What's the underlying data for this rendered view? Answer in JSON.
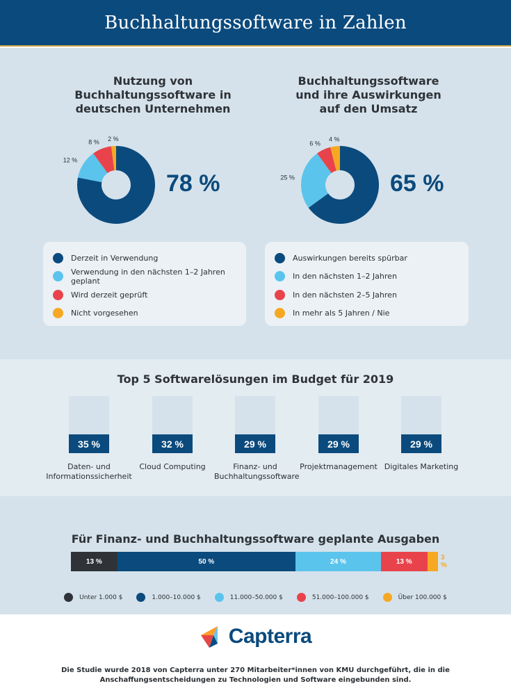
{
  "header": {
    "title": "Buchhaltungssoftware in Zahlen"
  },
  "colors": {
    "navy": "#0b4a7d",
    "light_blue": "#5bc4ec",
    "red": "#e8434b",
    "orange": "#f7a823",
    "dark": "#2f3338"
  },
  "usage": {
    "title": "Nutzung von Buchhaltungssoftware in deutschen Unternehmen",
    "big_value": "78 %",
    "slices": [
      {
        "label": "Derzeit in Verwendung",
        "value": 78,
        "value_label": "",
        "color": "#0b4a7d"
      },
      {
        "label": "Verwendung in den nächsten 1–2 Jahren geplant",
        "value": 12,
        "value_label": "12 %",
        "color": "#5bc4ec"
      },
      {
        "label": "Wird derzeit geprüft",
        "value": 8,
        "value_label": "8 %",
        "color": "#e8434b"
      },
      {
        "label": "Nicht vorgesehen",
        "value": 2,
        "value_label": "2 %",
        "color": "#f7a823"
      }
    ]
  },
  "impact": {
    "title": "Buchhaltungssoftware und ihre Auswirkungen auf den Umsatz",
    "big_value": "65 %",
    "slices": [
      {
        "label": "Auswirkungen bereits spürbar",
        "value": 65,
        "value_label": "",
        "color": "#0b4a7d"
      },
      {
        "label": "In den nächsten 1–2 Jahren",
        "value": 25,
        "value_label": "25 %",
        "color": "#5bc4ec"
      },
      {
        "label": "In den nächsten 2–5 Jahren",
        "value": 6,
        "value_label": "6 %",
        "color": "#e8434b"
      },
      {
        "label": "In mehr als 5 Jahren / Nie",
        "value": 4,
        "value_label": "4 %",
        "color": "#f7a823"
      }
    ]
  },
  "budget": {
    "title": "Top 5 Softwarelösungen im Budget für 2019",
    "items": [
      {
        "value": "35 %",
        "label": "Daten- und Informationssicherheit"
      },
      {
        "value": "32 %",
        "label": "Cloud Computing"
      },
      {
        "value": "29 %",
        "label": "Finanz- und Buchhaltungssoftware"
      },
      {
        "value": "29 %",
        "label": "Projektmanagement"
      },
      {
        "value": "29 %",
        "label": "Digitales Marketing"
      }
    ]
  },
  "spending": {
    "title": "Für Finanz- und Buchhaltungssoftware geplante Ausgaben",
    "segments": [
      {
        "label": "Unter 1.000 $",
        "value": 13,
        "value_label": "13 %",
        "color": "#2f3338"
      },
      {
        "label": "1.000–10.000 $",
        "value": 50,
        "value_label": "50 %",
        "color": "#0b4a7d"
      },
      {
        "label": "11.000–50.000 $",
        "value": 24,
        "value_label": "24 %",
        "color": "#5bc4ec"
      },
      {
        "label": "51.000–100.000 $",
        "value": 13,
        "value_label": "13 %",
        "color": "#e8434b"
      },
      {
        "label": "Über 100.000 $",
        "value": 3,
        "value_label": "3 %",
        "color": "#f7a823"
      }
    ]
  },
  "footer": {
    "logo_text": "Capterra",
    "note": "Die Studie wurde 2018 von Capterra unter 270 Mitarbeiter*innen von KMU durchgeführt, die in die Anschaffungsentscheidungen zu Technologien und Software eingebunden sind."
  }
}
